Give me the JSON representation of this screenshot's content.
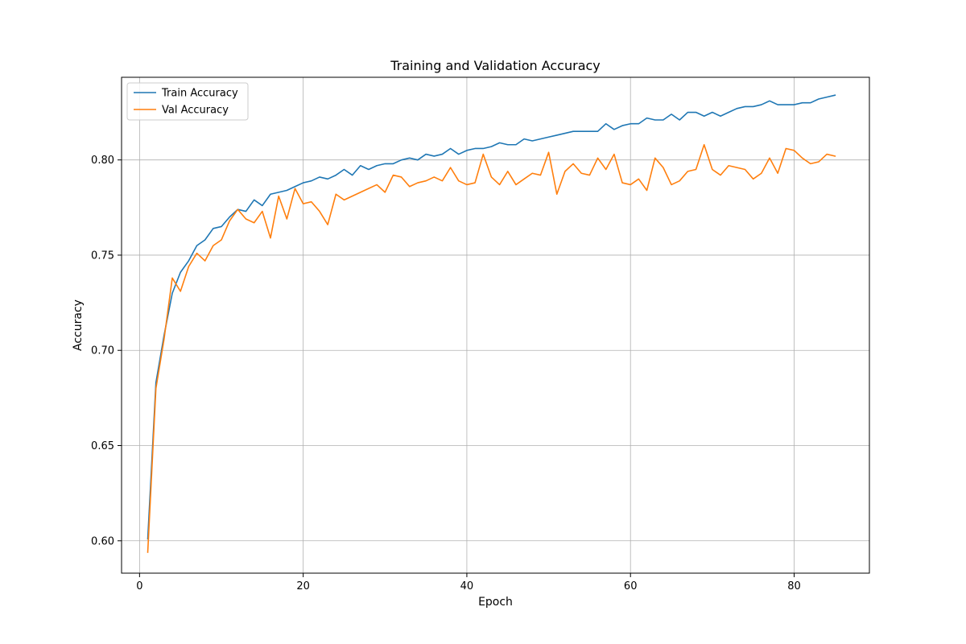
{
  "chart_data": {
    "type": "line",
    "title": "Training and Validation Accuracy",
    "xlabel": "Epoch",
    "ylabel": "Accuracy",
    "xlim": [
      -2.2,
      89.2
    ],
    "ylim": [
      0.583,
      0.8434
    ],
    "xticks": [
      0,
      20,
      40,
      60,
      80
    ],
    "yticks": [
      0.6,
      0.65,
      0.7,
      0.75,
      0.8
    ],
    "ytick_labels": [
      "0.60",
      "0.65",
      "0.70",
      "0.75",
      "0.80"
    ],
    "grid": true,
    "legend": {
      "position": "top-left"
    },
    "x": [
      1,
      2,
      3,
      4,
      5,
      6,
      7,
      8,
      9,
      10,
      11,
      12,
      13,
      14,
      15,
      16,
      17,
      18,
      19,
      20,
      21,
      22,
      23,
      24,
      25,
      26,
      27,
      28,
      29,
      30,
      31,
      32,
      33,
      34,
      35,
      36,
      37,
      38,
      39,
      40,
      41,
      42,
      43,
      44,
      45,
      46,
      47,
      48,
      49,
      50,
      51,
      52,
      53,
      54,
      55,
      56,
      57,
      58,
      59,
      60,
      61,
      62,
      63,
      64,
      65,
      66,
      67,
      68,
      69,
      70,
      71,
      72,
      73,
      74,
      75,
      76,
      77,
      78,
      79,
      80,
      81,
      82,
      83,
      84,
      85
    ],
    "series": [
      {
        "name": "Train Accuracy",
        "color": "#1f77b4",
        "values": [
          0.601,
          0.683,
          0.708,
          0.73,
          0.741,
          0.747,
          0.755,
          0.758,
          0.764,
          0.765,
          0.77,
          0.774,
          0.773,
          0.779,
          0.776,
          0.782,
          0.783,
          0.784,
          0.786,
          0.788,
          0.789,
          0.791,
          0.79,
          0.792,
          0.795,
          0.792,
          0.797,
          0.795,
          0.797,
          0.798,
          0.798,
          0.8,
          0.801,
          0.8,
          0.803,
          0.802,
          0.803,
          0.806,
          0.803,
          0.805,
          0.806,
          0.806,
          0.807,
          0.809,
          0.808,
          0.808,
          0.811,
          0.81,
          0.811,
          0.812,
          0.813,
          0.814,
          0.815,
          0.815,
          0.815,
          0.815,
          0.819,
          0.816,
          0.818,
          0.819,
          0.819,
          0.822,
          0.821,
          0.821,
          0.824,
          0.821,
          0.825,
          0.825,
          0.823,
          0.825,
          0.823,
          0.825,
          0.827,
          0.828,
          0.828,
          0.829,
          0.831,
          0.829,
          0.829,
          0.829,
          0.83,
          0.83,
          0.832,
          0.833,
          0.834
        ]
      },
      {
        "name": "Val Accuracy",
        "color": "#ff7f0e",
        "values": [
          0.594,
          0.68,
          0.706,
          0.738,
          0.731,
          0.744,
          0.751,
          0.747,
          0.755,
          0.758,
          0.768,
          0.774,
          0.769,
          0.767,
          0.773,
          0.759,
          0.781,
          0.769,
          0.785,
          0.777,
          0.778,
          0.773,
          0.766,
          0.782,
          0.779,
          0.781,
          0.783,
          0.785,
          0.787,
          0.783,
          0.792,
          0.791,
          0.786,
          0.788,
          0.789,
          0.791,
          0.789,
          0.796,
          0.789,
          0.787,
          0.788,
          0.803,
          0.791,
          0.787,
          0.794,
          0.787,
          0.79,
          0.793,
          0.792,
          0.804,
          0.782,
          0.794,
          0.798,
          0.793,
          0.792,
          0.801,
          0.795,
          0.803,
          0.788,
          0.787,
          0.79,
          0.784,
          0.801,
          0.796,
          0.787,
          0.789,
          0.794,
          0.795,
          0.808,
          0.795,
          0.792,
          0.797,
          0.796,
          0.795,
          0.79,
          0.793,
          0.801,
          0.793,
          0.806,
          0.805,
          0.801,
          0.798,
          0.799,
          0.803,
          0.802
        ]
      }
    ]
  }
}
